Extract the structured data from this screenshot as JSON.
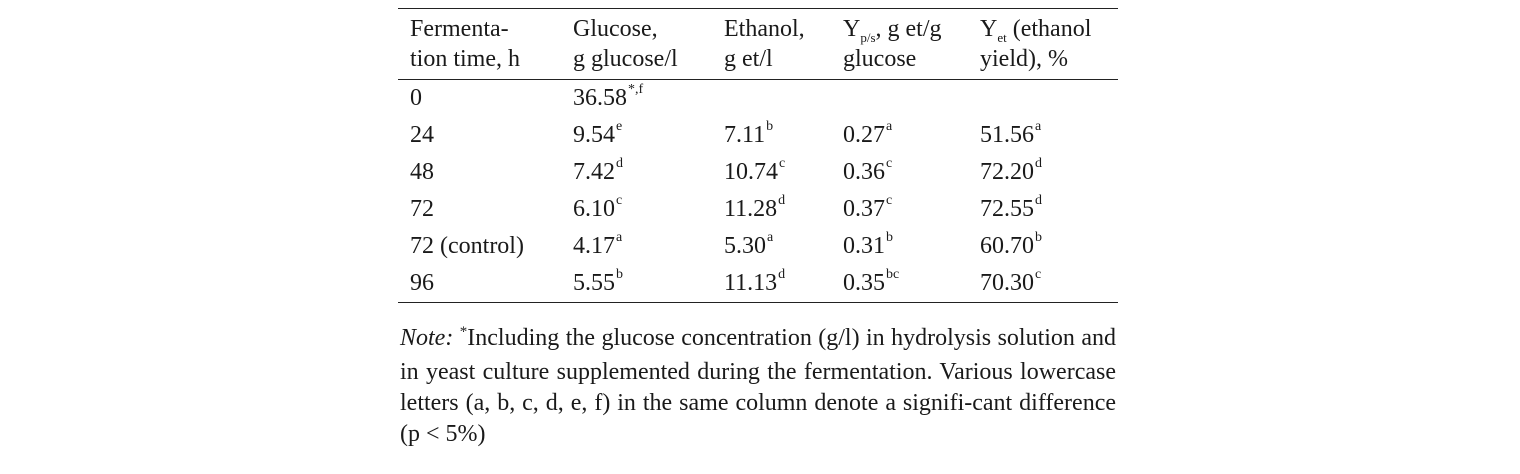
{
  "table": {
    "headers": [
      {
        "lines": [
          "Fermenta-",
          "tion time, h"
        ]
      },
      {
        "lines": [
          "Glucose,",
          "g glucose/l"
        ]
      },
      {
        "lines": [
          "Ethanol,",
          "g et/l"
        ]
      },
      {
        "sym": "Y",
        "sub": "p/s",
        "rest1": ", g et/g",
        "line2": "glucose"
      },
      {
        "sym": "Y",
        "sub": "et",
        "rest1": "(ethanol",
        "line2": "yield), %"
      }
    ],
    "rows": [
      {
        "time": "0",
        "cells": [
          {
            "v": "36.58",
            "s": "*,f"
          },
          {
            "v": "",
            "s": ""
          },
          {
            "v": "",
            "s": ""
          },
          {
            "v": "",
            "s": ""
          }
        ]
      },
      {
        "time": "24",
        "cells": [
          {
            "v": "9.54",
            "s": "e"
          },
          {
            "v": "7.11",
            "s": "b"
          },
          {
            "v": "0.27",
            "s": "a"
          },
          {
            "v": "51.56",
            "s": "a"
          }
        ]
      },
      {
        "time": "48",
        "cells": [
          {
            "v": "7.42",
            "s": "d"
          },
          {
            "v": "10.74",
            "s": "c"
          },
          {
            "v": "0.36",
            "s": "c"
          },
          {
            "v": "72.20",
            "s": "d"
          }
        ]
      },
      {
        "time": "72",
        "cells": [
          {
            "v": "6.10",
            "s": "c"
          },
          {
            "v": "11.28",
            "s": "d"
          },
          {
            "v": "0.37",
            "s": "c"
          },
          {
            "v": "72.55",
            "s": "d"
          }
        ]
      },
      {
        "time": "72 (control)",
        "cells": [
          {
            "v": "4.17",
            "s": "a"
          },
          {
            "v": "5.30",
            "s": "a"
          },
          {
            "v": "0.31",
            "s": "b"
          },
          {
            "v": "60.70",
            "s": "b"
          }
        ]
      },
      {
        "time": "96",
        "cells": [
          {
            "v": "5.55",
            "s": "b"
          },
          {
            "v": "11.13",
            "s": "d"
          },
          {
            "v": "0.35",
            "s": "bc"
          },
          {
            "v": "70.30",
            "s": "c"
          }
        ]
      }
    ]
  },
  "note": {
    "label": "Note:",
    "marker": "*",
    "text": "Including the glucose concentration (g/l) in hydrolysis solution and in yeast culture supplemented during the fermentation. Various lowercase letters (a, b, c, d, e, f) in the same column denote a signifi-cant difference (p < 5%)"
  }
}
